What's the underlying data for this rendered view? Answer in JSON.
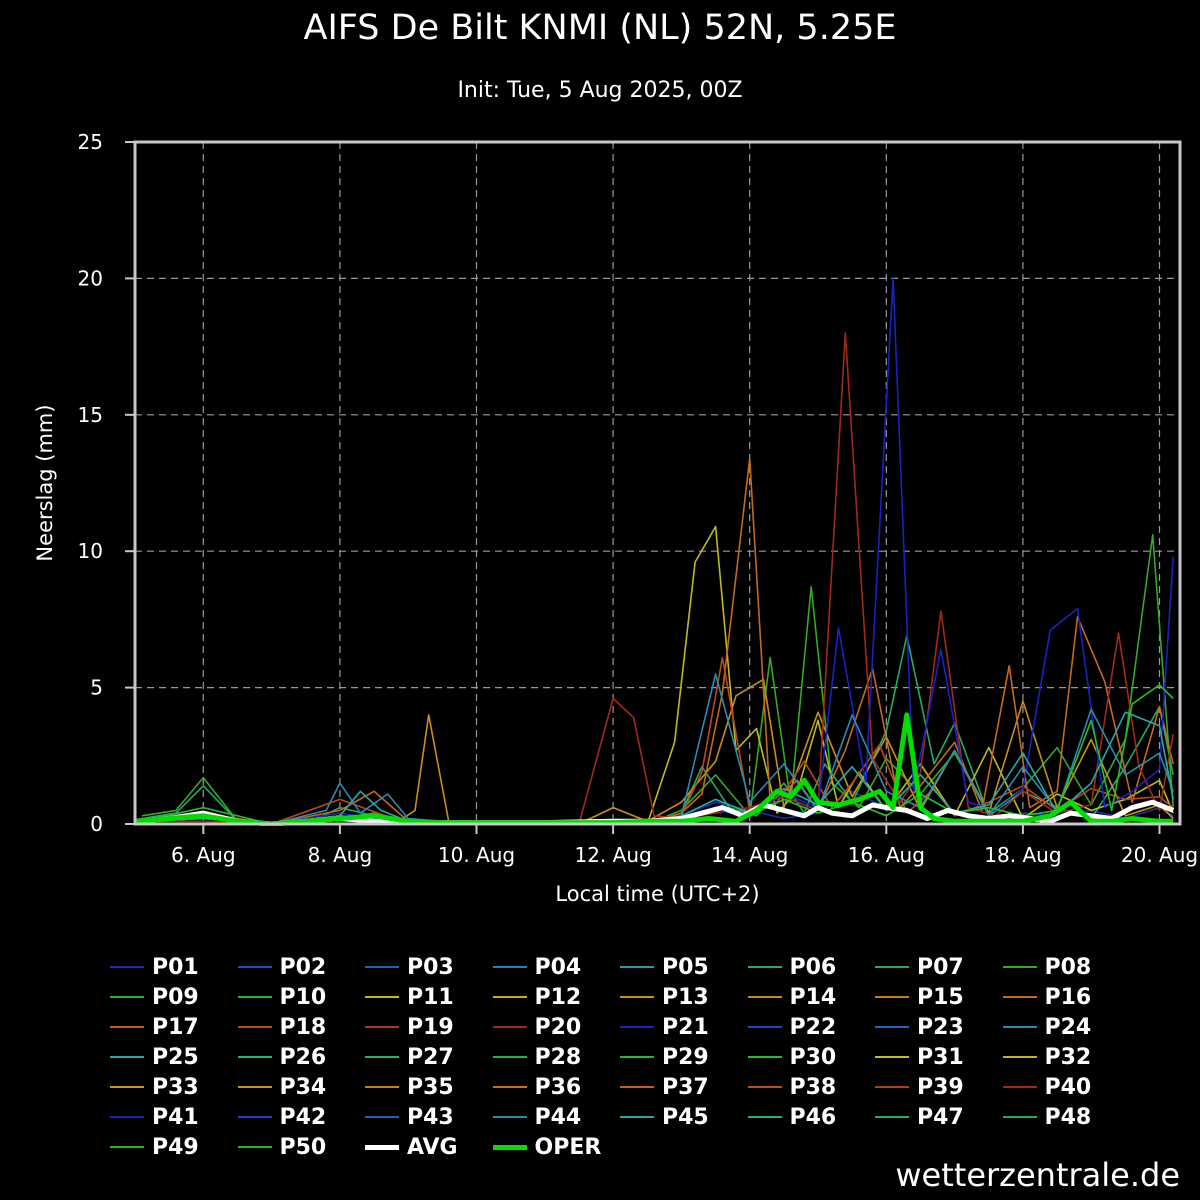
{
  "header": {
    "title": "AIFS De Bilt KNMI (NL) 52N, 5.25E",
    "subtitle": "Init: Tue, 5 Aug 2025, 00Z"
  },
  "watermark": "wetterzentrale.de",
  "colors": {
    "background": "#000000",
    "axis_frame": "#c8c8c8",
    "grid": "#9a9a9a",
    "avg": "#ffffff",
    "oper": "#00dd00"
  },
  "chart_data": {
    "type": "line",
    "ylabel": "Neerslag (mm)",
    "xlabel": "Local time (UTC+2)",
    "ylim": [
      0,
      25
    ],
    "yticks": [
      0,
      5,
      10,
      15,
      20,
      25
    ],
    "xlim_days": [
      5.0,
      20.3
    ],
    "xticks": [
      {
        "day": 6,
        "label": "6. Aug"
      },
      {
        "day": 8,
        "label": "8. Aug"
      },
      {
        "day": 10,
        "label": "10. Aug"
      },
      {
        "day": 12,
        "label": "12. Aug"
      },
      {
        "day": 14,
        "label": "14. Aug"
      },
      {
        "day": 16,
        "label": "16. Aug"
      },
      {
        "day": 18,
        "label": "18. Aug"
      },
      {
        "day": 20,
        "label": "20. Aug"
      }
    ],
    "x_unit": "day of August (local time)",
    "grid": true,
    "legend_position": "bottom",
    "series": [
      {
        "name": "P01",
        "color": "#1a2fb0",
        "x": [
          5.1,
          5.6,
          6.0,
          6.6,
          7.5,
          8.0,
          8.5,
          9.0,
          10.0,
          12.5,
          13.0,
          13.5,
          14.0,
          14.5,
          15.0,
          15.5,
          16.0,
          16.5,
          17.0,
          17.5,
          18.0,
          18.5,
          19.0,
          19.5,
          20.0,
          20.2
        ],
        "y": [
          0.2,
          0.1,
          0.3,
          0,
          0,
          0.2,
          0,
          0,
          0,
          0,
          0.3,
          0.8,
          0.5,
          0.2,
          0.4,
          1.2,
          0.6,
          0.3,
          0.5,
          0.2,
          0.4,
          0.3,
          0.5,
          0.2,
          0.6,
          0.3
        ]
      },
      {
        "name": "P07",
        "color": "#22aa66",
        "x": [
          5.1,
          5.6,
          6.0,
          6.5,
          7.5,
          8.0,
          8.5,
          9.0,
          10.0,
          12.5,
          13.0,
          13.3,
          13.7,
          14.1,
          14.5,
          14.8,
          15.1,
          15.5,
          16.0,
          16.3,
          16.7,
          17.0,
          17.5,
          18.0,
          18.5,
          19.0,
          19.5,
          20.0,
          20.2
        ],
        "y": [
          0.2,
          0.4,
          1.4,
          0.1,
          0,
          0.6,
          0.3,
          0.1,
          0,
          0,
          0.4,
          2.1,
          0.6,
          0.3,
          1.5,
          0.4,
          2.2,
          0.8,
          3.4,
          6.9,
          2.2,
          3.7,
          0.3,
          1.2,
          0.6,
          0.2,
          2.1,
          4.3,
          1.8
        ]
      },
      {
        "name": "P08",
        "color": "#33aa22",
        "x": [
          5.1,
          5.6,
          6.0,
          6.5,
          7.5,
          8.0,
          8.5,
          9.0,
          10.0,
          12.5,
          13.0,
          13.5,
          14.0,
          14.3,
          14.6,
          14.9,
          15.2,
          15.6,
          16.0,
          16.5,
          17.0,
          17.5,
          18.0,
          18.5,
          19.0,
          19.5,
          19.9,
          20.2
        ],
        "y": [
          0.3,
          0.5,
          1.7,
          0.1,
          0,
          0.2,
          0.4,
          0.1,
          0,
          0,
          0.5,
          1.8,
          0.3,
          6.1,
          0.8,
          8.7,
          1.5,
          0.6,
          2.4,
          1.1,
          2.6,
          0.4,
          1.3,
          2.8,
          0.7,
          3.1,
          10.6,
          0.6
        ]
      },
      {
        "name": "P11",
        "color": "#bcbc1c",
        "x": [
          5.1,
          6.0,
          7.0,
          8.0,
          9.0,
          10.0,
          12.5,
          12.9,
          13.2,
          13.5,
          13.8,
          14.1,
          14.4,
          14.7,
          15.0,
          15.3,
          15.6,
          16.0,
          16.5,
          17.0,
          17.5,
          18.0,
          18.5,
          19.0,
          19.5,
          20.0,
          20.2
        ],
        "y": [
          0.1,
          0.3,
          0,
          0.2,
          0,
          0,
          0,
          3.0,
          9.6,
          10.9,
          2.7,
          3.5,
          0.4,
          1.2,
          3.8,
          0.6,
          1.9,
          0.5,
          2.2,
          0.3,
          2.8,
          0.2,
          1.1,
          0.5,
          0.9,
          1.6,
          0.4
        ]
      },
      {
        "name": "P13",
        "color": "#c8901a",
        "x": [
          5.1,
          6.0,
          7.0,
          8.0,
          8.8,
          9.1,
          9.3,
          9.6,
          10.0,
          11.5,
          12.0,
          12.5,
          13.0,
          13.5,
          13.8,
          14.2,
          14.5,
          15.0,
          15.5,
          16.0,
          16.5,
          17.0,
          17.5,
          18.0,
          18.5,
          19.0,
          19.5,
          20.0,
          20.2
        ],
        "y": [
          0.1,
          0.2,
          0,
          0.3,
          0,
          0.5,
          4.0,
          0,
          0,
          0,
          0.6,
          0.1,
          0.8,
          2.3,
          4.7,
          5.3,
          0.6,
          4.1,
          1.0,
          3.2,
          0.5,
          2.7,
          0.4,
          4.5,
          0.6,
          3.1,
          0.3,
          0.7,
          0.2
        ]
      },
      {
        "name": "P16",
        "color": "#c46a1e",
        "x": [
          5.1,
          6.0,
          7.0,
          8.0,
          8.5,
          9.0,
          10.0,
          12.5,
          13.0,
          13.3,
          13.6,
          14.0,
          14.3,
          14.7,
          15.0,
          15.4,
          15.8,
          16.2,
          16.5,
          17.0,
          17.4,
          17.8,
          18.1,
          18.5,
          18.8,
          19.2,
          19.6,
          20.0,
          20.2
        ],
        "y": [
          0.1,
          0.4,
          0,
          0.5,
          1.2,
          0.1,
          0,
          0,
          0.4,
          1.1,
          4.8,
          13.4,
          0.8,
          1.6,
          0.5,
          2.7,
          5.7,
          0.6,
          1.4,
          3.0,
          0.5,
          5.8,
          0.6,
          1.2,
          7.6,
          5.2,
          0.8,
          4.3,
          2.2
        ]
      },
      {
        "name": "P18",
        "color": "#b84a1c",
        "x": [
          5.1,
          6.0,
          7.0,
          8.0,
          9.0,
          10.0,
          12.5,
          13.0,
          13.3,
          13.6,
          14.0,
          14.4,
          14.8,
          15.2,
          15.5,
          15.9,
          16.3,
          16.7,
          17.0,
          17.5,
          18.0,
          18.5,
          19.0,
          19.5,
          20.0,
          20.2
        ],
        "y": [
          0.1,
          0.2,
          0,
          0.9,
          0,
          0,
          0,
          0.3,
          1.9,
          6.1,
          0.5,
          0.8,
          2.3,
          0.6,
          1.5,
          2.9,
          0.4,
          1.3,
          0.3,
          0.8,
          1.4,
          0.5,
          1.3,
          0.9,
          1.0,
          0.6
        ]
      },
      {
        "name": "P20",
        "color": "#a02a18",
        "x": [
          5.1,
          6.0,
          7.0,
          8.0,
          9.0,
          10.0,
          11.5,
          12.0,
          12.3,
          12.6,
          13.0,
          13.5,
          14.0,
          14.5,
          15.0,
          15.4,
          15.8,
          16.2,
          16.5,
          16.8,
          17.2,
          17.6,
          18.0,
          18.5,
          19.0,
          19.4,
          19.7,
          20.0,
          20.2
        ],
        "y": [
          0.1,
          0.1,
          0,
          0.3,
          0,
          0,
          0,
          4.6,
          3.9,
          0.3,
          0.2,
          0.4,
          0.6,
          1.0,
          0.5,
          18.0,
          2.4,
          0.8,
          1.9,
          7.8,
          0.6,
          0.3,
          1.2,
          0.4,
          0.7,
          7.0,
          2.1,
          0.5,
          3.3
        ]
      },
      {
        "name": "P21",
        "color": "#1a22c0",
        "x": [
          5.1,
          6.0,
          7.0,
          8.0,
          9.0,
          10.0,
          12.5,
          13.0,
          13.5,
          14.0,
          14.5,
          15.0,
          15.3,
          15.7,
          16.1,
          16.4,
          16.8,
          17.2,
          17.6,
          18.0,
          18.4,
          18.8,
          19.2,
          19.6,
          20.0,
          20.2
        ],
        "y": [
          0.2,
          0.3,
          0,
          0.4,
          0,
          0,
          0,
          0.2,
          0.5,
          0.3,
          1.1,
          0.6,
          7.2,
          1.5,
          20.0,
          1.2,
          6.4,
          0.8,
          0.5,
          1.3,
          7.1,
          7.9,
          0.6,
          1.2,
          2.0,
          9.8
        ]
      },
      {
        "name": "P24",
        "color": "#2a8ab0",
        "x": [
          5.1,
          6.0,
          7.0,
          7.8,
          8.0,
          8.3,
          8.7,
          9.0,
          10.0,
          12.5,
          13.0,
          13.5,
          14.0,
          14.5,
          15.0,
          15.5,
          16.0,
          16.5,
          17.0,
          17.5,
          18.0,
          18.5,
          19.0,
          19.5,
          20.0,
          20.2
        ],
        "y": [
          0.1,
          0.3,
          0,
          0.5,
          1.5,
          0.4,
          1.1,
          0.2,
          0,
          0,
          0.3,
          5.5,
          0.8,
          2.2,
          0.5,
          4.0,
          1.2,
          0.6,
          2.7,
          0.3,
          2.1,
          0.5,
          4.2,
          1.8,
          2.6,
          1.2
        ]
      },
      {
        "name": "P25",
        "color": "#2aa8a8",
        "x": [
          5.1,
          6.0,
          7.0,
          8.0,
          8.3,
          8.6,
          9.0,
          10.0,
          12.5,
          13.0,
          13.5,
          14.0,
          14.5,
          15.0,
          15.5,
          16.0,
          16.5,
          17.0,
          17.5,
          18.0,
          18.5,
          19.0,
          19.5,
          20.0,
          20.2
        ],
        "y": [
          0.1,
          0.2,
          0,
          0.3,
          1.2,
          0.5,
          0.1,
          0,
          0,
          0.3,
          0.9,
          0.4,
          1.3,
          0.7,
          2.1,
          0.5,
          1.8,
          0.4,
          0.7,
          2.6,
          0.4,
          1.5,
          4.1,
          3.6,
          0.9
        ]
      },
      {
        "name": "P30",
        "color": "#26c026",
        "x": [
          5.1,
          6.0,
          7.0,
          8.0,
          9.0,
          10.0,
          12.5,
          13.0,
          13.5,
          14.0,
          14.5,
          15.0,
          15.5,
          16.0,
          16.5,
          17.0,
          17.5,
          18.0,
          18.5,
          19.0,
          19.3,
          19.6,
          20.0,
          20.2
        ],
        "y": [
          0.1,
          0.6,
          0,
          0.3,
          0,
          0,
          0,
          0.2,
          0.6,
          0.3,
          0.9,
          0.4,
          0.8,
          0.3,
          1.1,
          0.4,
          0.6,
          0.3,
          0.5,
          3.8,
          0.5,
          4.4,
          5.1,
          4.6
        ]
      }
    ],
    "avg": {
      "name": "AVG",
      "x": [
        5.0,
        5.5,
        6.0,
        6.5,
        7.0,
        7.5,
        8.0,
        8.5,
        9.0,
        9.5,
        10.0,
        11.0,
        12.0,
        12.5,
        13.0,
        13.3,
        13.6,
        13.9,
        14.2,
        14.5,
        14.8,
        15.0,
        15.2,
        15.5,
        15.8,
        16.0,
        16.3,
        16.6,
        16.9,
        17.2,
        17.5,
        17.8,
        18.1,
        18.4,
        18.7,
        19.0,
        19.3,
        19.6,
        19.9,
        20.2
      ],
      "y": [
        0.1,
        0.2,
        0.4,
        0.1,
        0,
        0.1,
        0.2,
        0.1,
        0.05,
        0.05,
        0.05,
        0.05,
        0.1,
        0.1,
        0.2,
        0.4,
        0.6,
        0.3,
        0.7,
        0.5,
        0.3,
        0.6,
        0.4,
        0.3,
        0.7,
        0.6,
        0.5,
        0.2,
        0.5,
        0.3,
        0.2,
        0.3,
        0.2,
        0.1,
        0.4,
        0.3,
        0.2,
        0.6,
        0.8,
        0.5
      ]
    },
    "oper": {
      "name": "OPER",
      "x": [
        5.0,
        5.5,
        6.0,
        6.5,
        7.0,
        7.5,
        8.0,
        8.5,
        9.0,
        9.5,
        10.0,
        11.0,
        12.0,
        12.5,
        13.0,
        13.4,
        13.8,
        14.1,
        14.4,
        14.6,
        14.8,
        15.0,
        15.3,
        15.6,
        15.9,
        16.1,
        16.3,
        16.5,
        16.7,
        17.0,
        17.5,
        18.0,
        18.4,
        18.7,
        19.0,
        19.3,
        19.6,
        20.0,
        20.2
      ],
      "y": [
        0.1,
        0.2,
        0.3,
        0.1,
        0,
        0.1,
        0.2,
        0.3,
        0.1,
        0.05,
        0.05,
        0.05,
        0.05,
        0.1,
        0.1,
        0.2,
        0.1,
        0.5,
        1.2,
        1.0,
        1.6,
        0.8,
        0.7,
        0.9,
        1.2,
        0.6,
        4.0,
        0.6,
        0.2,
        0.1,
        0.1,
        0.1,
        0.3,
        0.8,
        0.1,
        0.1,
        0.2,
        0.1,
        0.1
      ]
    },
    "legend": [
      {
        "name": "P01",
        "color": "#1a2fb0"
      },
      {
        "name": "P02",
        "color": "#1d4fc0"
      },
      {
        "name": "P03",
        "color": "#2060b8"
      },
      {
        "name": "P04",
        "color": "#2580b8"
      },
      {
        "name": "P05",
        "color": "#2a9cb0"
      },
      {
        "name": "P06",
        "color": "#22a880"
      },
      {
        "name": "P07",
        "color": "#22aa66"
      },
      {
        "name": "P08",
        "color": "#33aa22"
      },
      {
        "name": "P09",
        "color": "#28b028"
      },
      {
        "name": "P10",
        "color": "#20b830"
      },
      {
        "name": "P11",
        "color": "#bcbc1c"
      },
      {
        "name": "P12",
        "color": "#c8a81c"
      },
      {
        "name": "P13",
        "color": "#c8901a"
      },
      {
        "name": "P14",
        "color": "#c8881c"
      },
      {
        "name": "P15",
        "color": "#c87a20"
      },
      {
        "name": "P16",
        "color": "#c46a1e"
      },
      {
        "name": "P17",
        "color": "#be5a22"
      },
      {
        "name": "P18",
        "color": "#b84a1c"
      },
      {
        "name": "P19",
        "color": "#ae3a1c"
      },
      {
        "name": "P20",
        "color": "#a02a18"
      },
      {
        "name": "P21",
        "color": "#1a22c0"
      },
      {
        "name": "P22",
        "color": "#1c48c4"
      },
      {
        "name": "P23",
        "color": "#2266b8"
      },
      {
        "name": "P24",
        "color": "#2a8ab0"
      },
      {
        "name": "P25",
        "color": "#2aa8a8"
      },
      {
        "name": "P26",
        "color": "#26b088"
      },
      {
        "name": "P27",
        "color": "#24b068"
      },
      {
        "name": "P28",
        "color": "#26b048"
      },
      {
        "name": "P29",
        "color": "#28b828"
      },
      {
        "name": "P30",
        "color": "#26c026"
      },
      {
        "name": "P31",
        "color": "#c0c020"
      },
      {
        "name": "P32",
        "color": "#c8b020"
      },
      {
        "name": "P33",
        "color": "#c89a1c"
      },
      {
        "name": "P34",
        "color": "#c8901c"
      },
      {
        "name": "P35",
        "color": "#c8801c"
      },
      {
        "name": "P36",
        "color": "#c47020"
      },
      {
        "name": "P37",
        "color": "#c06020"
      },
      {
        "name": "P38",
        "color": "#b8501e"
      },
      {
        "name": "P39",
        "color": "#b0401c"
      },
      {
        "name": "P40",
        "color": "#a02818"
      },
      {
        "name": "P41",
        "color": "#1a22b8"
      },
      {
        "name": "P42",
        "color": "#1c44c0"
      },
      {
        "name": "P43",
        "color": "#2064b8"
      },
      {
        "name": "P44",
        "color": "#2888b0"
      },
      {
        "name": "P45",
        "color": "#2aa4a8"
      },
      {
        "name": "P46",
        "color": "#26ac88"
      },
      {
        "name": "P47",
        "color": "#24ac6a"
      },
      {
        "name": "P48",
        "color": "#26ac48"
      },
      {
        "name": "P49",
        "color": "#28b428"
      },
      {
        "name": "P50",
        "color": "#26b82a"
      },
      {
        "name": "AVG",
        "color": "#ffffff",
        "thick": true
      },
      {
        "name": "OPER",
        "color": "#00dd00",
        "thick": true
      }
    ]
  }
}
